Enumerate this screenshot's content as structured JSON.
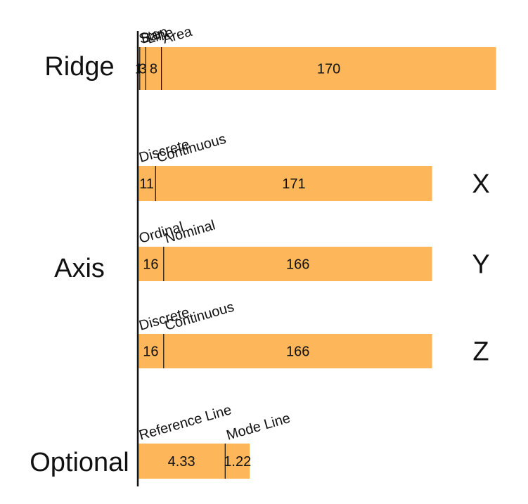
{
  "chart_data": {
    "type": "bar",
    "orientation": "horizontal-stacked",
    "colors": {
      "bar": "#FDB75A",
      "divider": "#111111",
      "text": "#111111"
    },
    "groups": [
      {
        "label": "Ridge",
        "rows": [
          {
            "axis": "",
            "segments": [
              {
                "category": "Step",
                "value": 1,
                "text": "1"
              },
              {
                "category": "Bar",
                "value": 3,
                "text": "3"
              },
              {
                "category": "Line",
                "value": 8,
                "text": "8"
              },
              {
                "category": "Area",
                "value": 170,
                "text": "170"
              }
            ]
          }
        ]
      },
      {
        "label": "Axis",
        "rows": [
          {
            "axis": "X",
            "segments": [
              {
                "category": "Discrete",
                "value": 11,
                "text": "11"
              },
              {
                "category": "Continuous",
                "value": 171,
                "text": "171"
              }
            ]
          },
          {
            "axis": "Y",
            "segments": [
              {
                "category": "Ordinal",
                "value": 16,
                "text": "16"
              },
              {
                "category": "Nominal",
                "value": 166,
                "text": "166"
              }
            ]
          },
          {
            "axis": "Z",
            "segments": [
              {
                "category": "Discrete",
                "value": 16,
                "text": "16"
              },
              {
                "category": "Continuous",
                "value": 166,
                "text": "166"
              }
            ]
          }
        ]
      },
      {
        "label": "Optional",
        "rows": [
          {
            "axis": "",
            "segments": [
              {
                "category": "Reference Line",
                "value": 4.33,
                "text": "4.33"
              },
              {
                "category": "Mode Line",
                "value": 1.22,
                "text": "1.22"
              }
            ]
          }
        ]
      }
    ]
  }
}
